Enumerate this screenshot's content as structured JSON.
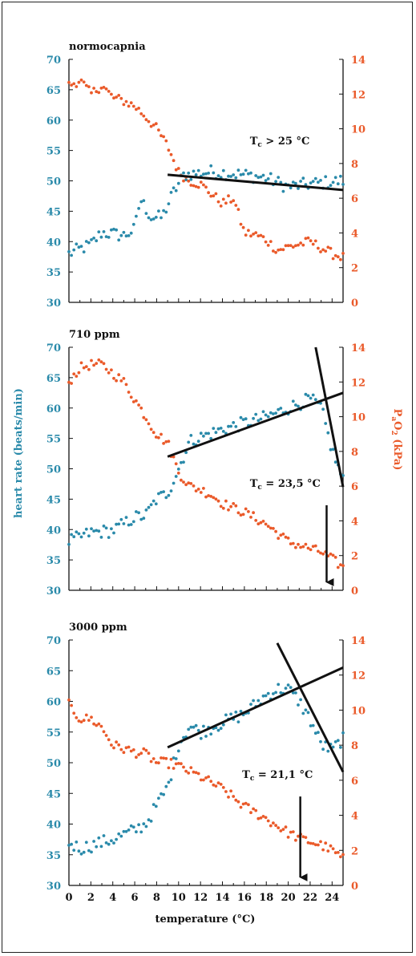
{
  "colors": {
    "heart_rate": "#2a8aaa",
    "pao2": "#ea5a2a",
    "fit": "#111111"
  },
  "axis": {
    "xlabel": "temperature (°C)",
    "ylabel_left": "heart rate (beats/min)",
    "ylabel_right_main": "P",
    "ylabel_right_sub": "a",
    "ylabel_right_o": "O",
    "ylabel_right_sub2": "2",
    "ylabel_right_tail": " (kPa)",
    "x_ticks": [
      "0",
      "2",
      "4",
      "6",
      "8",
      "10",
      "12",
      "14",
      "16",
      "18",
      "20",
      "22",
      "24"
    ],
    "left_ticks": [
      "30",
      "35",
      "40",
      "45",
      "50",
      "55",
      "60",
      "65",
      "70"
    ],
    "right_ticks": [
      "0",
      "2",
      "4",
      "6",
      "8",
      "10",
      "12",
      "14"
    ]
  },
  "chart_data": [
    {
      "type": "scatter",
      "title": "normocapnia",
      "xlim": [
        0,
        25
      ],
      "ylim_left": [
        30,
        70
      ],
      "ylim_right": [
        0,
        14
      ],
      "annotation": {
        "main": "T",
        "sub": "c",
        "rest": " > 25 °C"
      },
      "annotation_pos": [
        16.5,
        56
      ],
      "arrow_x": null,
      "fit_lines": [
        {
          "x1": 9,
          "y1": 51,
          "x2": 25,
          "y2": 48.5
        }
      ],
      "series": [
        {
          "name": "heart rate",
          "axis": "left",
          "anchors": [
            [
              0,
              38
            ],
            [
              2,
              39.5
            ],
            [
              3,
              41.5
            ],
            [
              5,
              41
            ],
            [
              6,
              42
            ],
            [
              6.5,
              47
            ],
            [
              7.5,
              44
            ],
            [
              8.5,
              44
            ],
            [
              9.5,
              48
            ],
            [
              10.5,
              51
            ],
            [
              13,
              51.5
            ],
            [
              16,
              51
            ],
            [
              18,
              50.5
            ],
            [
              20,
              49
            ],
            [
              22,
              49.5
            ],
            [
              25,
              50
            ]
          ]
        },
        {
          "name": "PaO2",
          "axis": "right",
          "anchors": [
            [
              0,
              12.5
            ],
            [
              1,
              12.8
            ],
            [
              2,
              12
            ],
            [
              3,
              12.5
            ],
            [
              4,
              11.8
            ],
            [
              5,
              11.6
            ],
            [
              6,
              11.3
            ],
            [
              7,
              10.7
            ],
            [
              8,
              10
            ],
            [
              9,
              9
            ],
            [
              10,
              7.5
            ],
            [
              11,
              7
            ],
            [
              12,
              6.8
            ],
            [
              14,
              5.7
            ],
            [
              15,
              6
            ],
            [
              16,
              4
            ],
            [
              17,
              3.9
            ],
            [
              18,
              3.6
            ],
            [
              19,
              3
            ],
            [
              20,
              3.2
            ],
            [
              22,
              3.5
            ],
            [
              24,
              2.8
            ],
            [
              25,
              2.6
            ]
          ]
        }
      ]
    },
    {
      "type": "scatter",
      "title": "710 ppm",
      "xlim": [
        0,
        25
      ],
      "ylim_left": [
        30,
        70
      ],
      "ylim_right": [
        0,
        14
      ],
      "annotation": {
        "main": "T",
        "sub": "c",
        "rest": " = 23,5 °C"
      },
      "annotation_pos": [
        16.5,
        47
      ],
      "arrow_x": 23.5,
      "fit_lines": [
        {
          "x1": 9,
          "y1": 52,
          "x2": 25,
          "y2": 62.5
        },
        {
          "x1": 22.5,
          "y1": 70,
          "x2": 25,
          "y2": 47
        }
      ],
      "series": [
        {
          "name": "heart rate",
          "axis": "left",
          "anchors": [
            [
              0,
              38
            ],
            [
              2,
              39.5
            ],
            [
              4,
              39.8
            ],
            [
              6,
              42
            ],
            [
              7,
              42.3
            ],
            [
              8,
              45
            ],
            [
              9,
              46
            ],
            [
              10,
              50
            ],
            [
              11,
              54.5
            ],
            [
              12,
              55.2
            ],
            [
              14,
              56.5
            ],
            [
              16,
              57.5
            ],
            [
              18,
              58.5
            ],
            [
              20,
              60
            ],
            [
              22,
              61.5
            ],
            [
              23,
              60
            ],
            [
              24,
              53
            ],
            [
              25,
              48
            ]
          ]
        },
        {
          "name": "PaO2",
          "axis": "right",
          "anchors": [
            [
              0,
              12
            ],
            [
              1,
              12.8
            ],
            [
              2,
              13
            ],
            [
              3,
              13
            ],
            [
              4,
              12.5
            ],
            [
              5,
              12
            ],
            [
              6,
              11
            ],
            [
              7,
              10
            ],
            [
              8,
              9
            ],
            [
              9,
              8.5
            ],
            [
              10,
              6.8
            ],
            [
              11,
              6
            ],
            [
              12,
              5.8
            ],
            [
              13,
              5.5
            ],
            [
              14,
              5
            ],
            [
              16,
              4.5
            ],
            [
              18,
              3.8
            ],
            [
              20,
              2.8
            ],
            [
              22,
              2.4
            ],
            [
              23,
              2.2
            ],
            [
              24,
              1.8
            ],
            [
              25,
              1.3
            ]
          ]
        }
      ]
    },
    {
      "type": "scatter",
      "title": "3000 ppm",
      "xlim": [
        0,
        25
      ],
      "ylim_left": [
        30,
        70
      ],
      "ylim_right": [
        0,
        14
      ],
      "annotation": {
        "main": "T",
        "sub": "c",
        "rest": " = 21,1 °C"
      },
      "annotation_pos": [
        15.8,
        47.5
      ],
      "arrow_x": 21.1,
      "fit_lines": [
        {
          "x1": 9,
          "y1": 52.5,
          "x2": 25,
          "y2": 65.5
        },
        {
          "x1": 19,
          "y1": 69.5,
          "x2": 25,
          "y2": 48.5
        }
      ],
      "series": [
        {
          "name": "heart rate",
          "axis": "left",
          "anchors": [
            [
              0,
              37
            ],
            [
              1,
              36
            ],
            [
              2,
              36.5
            ],
            [
              4,
              37.5
            ],
            [
              6,
              39
            ],
            [
              7,
              40
            ],
            [
              8,
              43
            ],
            [
              9,
              46
            ],
            [
              10,
              53
            ],
            [
              11,
              56
            ],
            [
              12,
              55
            ],
            [
              14,
              56.5
            ],
            [
              16,
              58
            ],
            [
              18,
              61
            ],
            [
              19,
              62
            ],
            [
              20,
              62
            ],
            [
              21,
              60
            ],
            [
              22,
              57
            ],
            [
              23,
              53
            ],
            [
              24,
              52
            ],
            [
              25,
              54
            ]
          ]
        },
        {
          "name": "PaO2",
          "axis": "right",
          "anchors": [
            [
              0,
              10.3
            ],
            [
              1,
              9.5
            ],
            [
              2,
              9.5
            ],
            [
              3,
              9
            ],
            [
              4,
              8
            ],
            [
              5,
              7.8
            ],
            [
              6,
              7.6
            ],
            [
              7,
              7.5
            ],
            [
              8,
              7
            ],
            [
              9,
              7
            ],
            [
              10,
              6.8
            ],
            [
              11,
              6.5
            ],
            [
              12,
              6.2
            ],
            [
              14,
              5.5
            ],
            [
              16,
              4.5
            ],
            [
              18,
              3.8
            ],
            [
              20,
              3
            ],
            [
              21,
              2.7
            ],
            [
              22,
              2.5
            ],
            [
              23,
              2.3
            ],
            [
              24,
              2
            ],
            [
              25,
              1.5
            ]
          ]
        }
      ]
    }
  ]
}
